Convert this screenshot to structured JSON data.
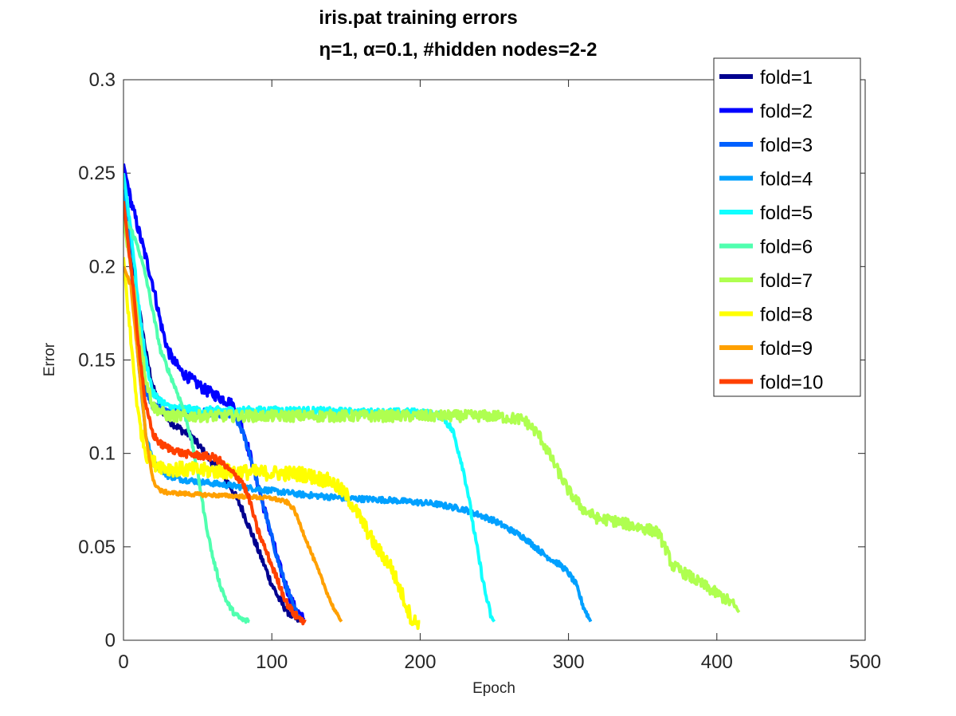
{
  "chart_data": {
    "type": "line",
    "title": "iris.pat training errors",
    "subtitle": "η=1,   α=0.1, #hidden nodes=2-2",
    "xlabel": "Epoch",
    "ylabel": "Error",
    "xlim": [
      0,
      500
    ],
    "ylim": [
      0,
      0.3
    ],
    "xticks": [
      "0",
      "100",
      "200",
      "300",
      "400",
      "500"
    ],
    "yticks": [
      "0",
      "0.05",
      "0.1",
      "0.15",
      "0.2",
      "0.25",
      "0.3"
    ],
    "grid": false,
    "legend_position": "top-right",
    "series": [
      {
        "name": "fold=1",
        "color": "#00008f",
        "noise": 0.002,
        "points": [
          [
            0,
            0.255
          ],
          [
            3,
            0.22
          ],
          [
            8,
            0.19
          ],
          [
            12,
            0.17
          ],
          [
            16,
            0.15
          ],
          [
            20,
            0.135
          ],
          [
            25,
            0.125
          ],
          [
            30,
            0.118
          ],
          [
            35,
            0.115
          ],
          [
            40,
            0.112
          ],
          [
            45,
            0.11
          ],
          [
            50,
            0.105
          ],
          [
            55,
            0.1
          ],
          [
            60,
            0.095
          ],
          [
            65,
            0.09
          ],
          [
            70,
            0.085
          ],
          [
            75,
            0.078
          ],
          [
            80,
            0.07
          ],
          [
            85,
            0.06
          ],
          [
            90,
            0.05
          ],
          [
            95,
            0.04
          ],
          [
            100,
            0.03
          ],
          [
            105,
            0.022
          ],
          [
            110,
            0.016
          ],
          [
            115,
            0.012
          ],
          [
            120,
            0.01
          ]
        ]
      },
      {
        "name": "fold=2",
        "color": "#0000ff",
        "noise": 0.003,
        "points": [
          [
            0,
            0.255
          ],
          [
            5,
            0.235
          ],
          [
            10,
            0.22
          ],
          [
            15,
            0.205
          ],
          [
            20,
            0.19
          ],
          [
            25,
            0.17
          ],
          [
            30,
            0.155
          ],
          [
            35,
            0.148
          ],
          [
            40,
            0.143
          ],
          [
            45,
            0.14
          ],
          [
            50,
            0.137
          ],
          [
            55,
            0.134
          ],
          [
            60,
            0.132
          ],
          [
            65,
            0.13
          ],
          [
            70,
            0.128
          ],
          [
            75,
            0.125
          ],
          [
            80,
            0.115
          ],
          [
            85,
            0.1
          ],
          [
            90,
            0.085
          ],
          [
            95,
            0.07
          ],
          [
            100,
            0.055
          ],
          [
            105,
            0.04
          ],
          [
            110,
            0.028
          ],
          [
            115,
            0.018
          ],
          [
            120,
            0.012
          ],
          [
            122,
            0.011
          ]
        ]
      },
      {
        "name": "fold=3",
        "color": "#0060ff",
        "noise": 0.002,
        "points": [
          [
            0,
            0.25
          ],
          [
            5,
            0.2
          ],
          [
            10,
            0.16
          ],
          [
            15,
            0.135
          ],
          [
            20,
            0.125
          ],
          [
            30,
            0.123
          ],
          [
            40,
            0.122
          ],
          [
            50,
            0.122
          ],
          [
            60,
            0.122
          ],
          [
            70,
            0.121
          ],
          [
            75,
            0.12
          ],
          [
            80,
            0.112
          ],
          [
            85,
            0.1
          ],
          [
            90,
            0.085
          ],
          [
            95,
            0.07
          ],
          [
            100,
            0.055
          ],
          [
            105,
            0.04
          ],
          [
            110,
            0.028
          ],
          [
            115,
            0.017
          ],
          [
            120,
            0.011
          ]
        ]
      },
      {
        "name": "fold=4",
        "color": "#00a0ff",
        "noise": 0.0015,
        "points": [
          [
            0,
            0.24
          ],
          [
            5,
            0.2
          ],
          [
            10,
            0.15
          ],
          [
            15,
            0.11
          ],
          [
            20,
            0.095
          ],
          [
            30,
            0.088
          ],
          [
            40,
            0.086
          ],
          [
            50,
            0.085
          ],
          [
            60,
            0.084
          ],
          [
            80,
            0.082
          ],
          [
            100,
            0.08
          ],
          [
            120,
            0.078
          ],
          [
            150,
            0.076
          ],
          [
            180,
            0.075
          ],
          [
            210,
            0.073
          ],
          [
            230,
            0.07
          ],
          [
            250,
            0.064
          ],
          [
            270,
            0.055
          ],
          [
            285,
            0.045
          ],
          [
            295,
            0.04
          ],
          [
            300,
            0.036
          ],
          [
            305,
            0.03
          ],
          [
            310,
            0.018
          ],
          [
            315,
            0.01
          ]
        ]
      },
      {
        "name": "fold=5",
        "color": "#10ffff",
        "noise": 0.002,
        "points": [
          [
            0,
            0.25
          ],
          [
            5,
            0.22
          ],
          [
            10,
            0.18
          ],
          [
            15,
            0.15
          ],
          [
            20,
            0.132
          ],
          [
            30,
            0.125
          ],
          [
            50,
            0.123
          ],
          [
            80,
            0.123
          ],
          [
            120,
            0.123
          ],
          [
            160,
            0.122
          ],
          [
            200,
            0.122
          ],
          [
            215,
            0.12
          ],
          [
            222,
            0.112
          ],
          [
            228,
            0.095
          ],
          [
            232,
            0.08
          ],
          [
            236,
            0.06
          ],
          [
            240,
            0.042
          ],
          [
            244,
            0.025
          ],
          [
            248,
            0.012
          ],
          [
            250,
            0.01
          ]
        ]
      },
      {
        "name": "fold=6",
        "color": "#50ffaf",
        "noise": 0.0015,
        "points": [
          [
            0,
            0.225
          ],
          [
            5,
            0.22
          ],
          [
            10,
            0.21
          ],
          [
            15,
            0.195
          ],
          [
            20,
            0.175
          ],
          [
            25,
            0.155
          ],
          [
            30,
            0.145
          ],
          [
            35,
            0.135
          ],
          [
            40,
            0.125
          ],
          [
            45,
            0.11
          ],
          [
            50,
            0.09
          ],
          [
            55,
            0.065
          ],
          [
            60,
            0.045
          ],
          [
            65,
            0.03
          ],
          [
            70,
            0.02
          ],
          [
            75,
            0.014
          ],
          [
            80,
            0.011
          ],
          [
            85,
            0.01
          ]
        ]
      },
      {
        "name": "fold=7",
        "color": "#afff50",
        "noise": 0.003,
        "points": [
          [
            0,
            0.225
          ],
          [
            5,
            0.2
          ],
          [
            10,
            0.17
          ],
          [
            15,
            0.14
          ],
          [
            20,
            0.125
          ],
          [
            30,
            0.12
          ],
          [
            50,
            0.12
          ],
          [
            100,
            0.12
          ],
          [
            150,
            0.12
          ],
          [
            200,
            0.12
          ],
          [
            250,
            0.12
          ],
          [
            270,
            0.118
          ],
          [
            280,
            0.11
          ],
          [
            290,
            0.095
          ],
          [
            300,
            0.08
          ],
          [
            310,
            0.07
          ],
          [
            320,
            0.065
          ],
          [
            330,
            0.064
          ],
          [
            340,
            0.062
          ],
          [
            350,
            0.06
          ],
          [
            360,
            0.058
          ],
          [
            365,
            0.05
          ],
          [
            370,
            0.04
          ],
          [
            380,
            0.035
          ],
          [
            390,
            0.03
          ],
          [
            400,
            0.025
          ],
          [
            410,
            0.02
          ],
          [
            415,
            0.015
          ]
        ]
      },
      {
        "name": "fold=8",
        "color": "#ffff00",
        "noise": 0.004,
        "points": [
          [
            0,
            0.205
          ],
          [
            5,
            0.16
          ],
          [
            10,
            0.12
          ],
          [
            15,
            0.1
          ],
          [
            20,
            0.095
          ],
          [
            30,
            0.092
          ],
          [
            50,
            0.091
          ],
          [
            80,
            0.09
          ],
          [
            120,
            0.089
          ],
          [
            140,
            0.085
          ],
          [
            150,
            0.078
          ],
          [
            160,
            0.065
          ],
          [
            170,
            0.05
          ],
          [
            180,
            0.04
          ],
          [
            190,
            0.02
          ],
          [
            195,
            0.01
          ],
          [
            200,
            0.01
          ]
        ]
      },
      {
        "name": "fold=9",
        "color": "#ffa000",
        "noise": 0.001,
        "points": [
          [
            0,
            0.2
          ],
          [
            5,
            0.19
          ],
          [
            10,
            0.15
          ],
          [
            15,
            0.11
          ],
          [
            20,
            0.085
          ],
          [
            25,
            0.08
          ],
          [
            30,
            0.079
          ],
          [
            50,
            0.078
          ],
          [
            80,
            0.077
          ],
          [
            100,
            0.076
          ],
          [
            110,
            0.074
          ],
          [
            115,
            0.07
          ],
          [
            120,
            0.06
          ],
          [
            125,
            0.05
          ],
          [
            130,
            0.04
          ],
          [
            135,
            0.03
          ],
          [
            140,
            0.02
          ],
          [
            145,
            0.012
          ],
          [
            147,
            0.01
          ]
        ]
      },
      {
        "name": "fold=10",
        "color": "#ff4000",
        "noise": 0.002,
        "points": [
          [
            0,
            0.235
          ],
          [
            5,
            0.2
          ],
          [
            10,
            0.16
          ],
          [
            15,
            0.125
          ],
          [
            20,
            0.11
          ],
          [
            25,
            0.105
          ],
          [
            30,
            0.103
          ],
          [
            40,
            0.1
          ],
          [
            50,
            0.099
          ],
          [
            60,
            0.098
          ],
          [
            65,
            0.096
          ],
          [
            70,
            0.092
          ],
          [
            80,
            0.085
          ],
          [
            85,
            0.075
          ],
          [
            90,
            0.06
          ],
          [
            95,
            0.05
          ],
          [
            100,
            0.04
          ],
          [
            105,
            0.03
          ],
          [
            110,
            0.02
          ],
          [
            115,
            0.014
          ],
          [
            120,
            0.011
          ],
          [
            123,
            0.01
          ]
        ]
      }
    ]
  }
}
